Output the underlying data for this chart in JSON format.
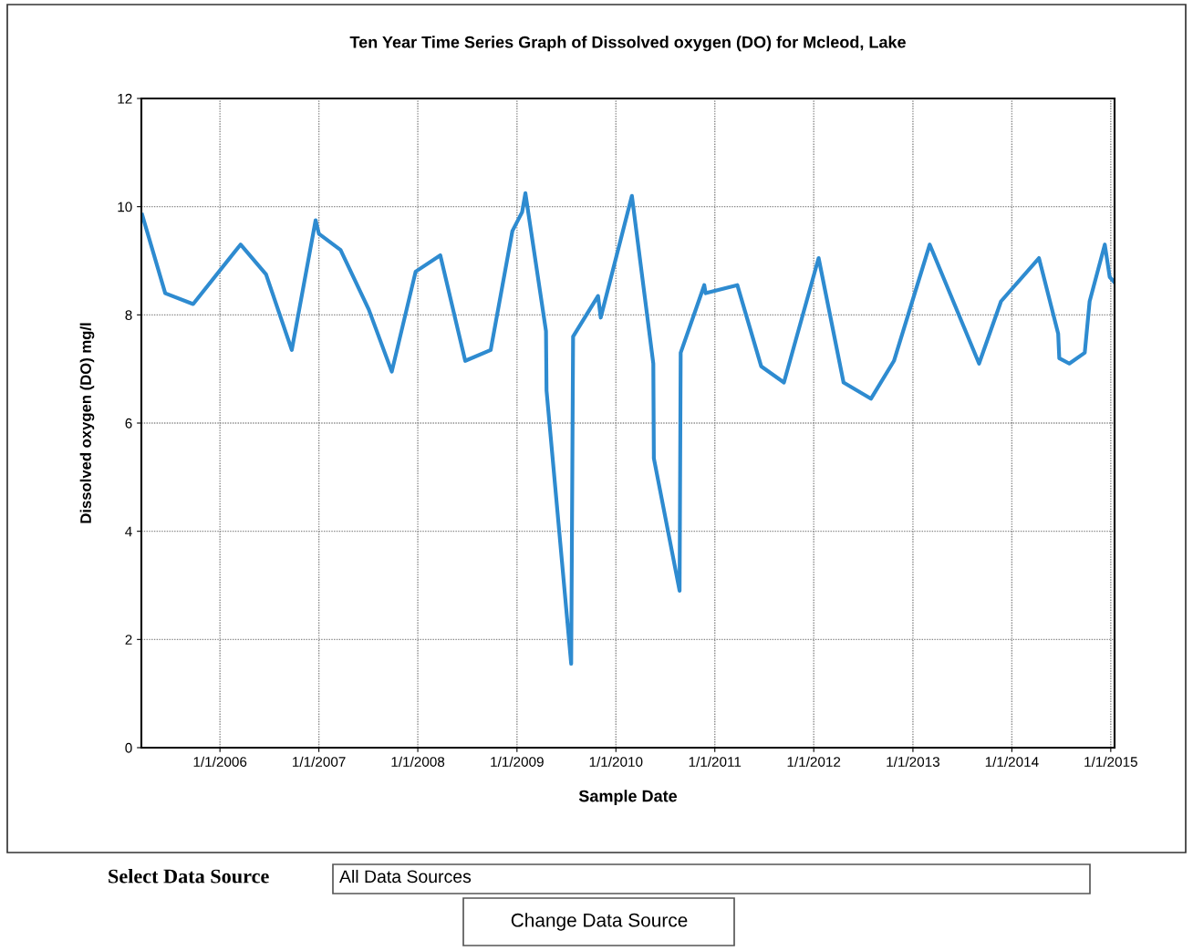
{
  "chart_data": {
    "type": "line",
    "title": "Ten Year Time Series Graph of Dissolved oxygen (DO) for Mcleod, Lake",
    "xlabel": "Sample Date",
    "ylabel": "Dissolved oxygen (DO) mg/l",
    "x": [
      "2005-03-20",
      "2005-06-13",
      "2005-09-24",
      "2006-03-18",
      "2006-06-20",
      "2006-09-23",
      "2006-12-20",
      "2007-01-01",
      "2007-03-22",
      "2007-07-04",
      "2007-09-27",
      "2007-12-24",
      "2008-03-24",
      "2008-06-24",
      "2008-09-26",
      "2008-12-15",
      "2009-01-20",
      "2009-02-01",
      "2009-04-18",
      "2009-04-20",
      "2009-07-20",
      "2009-07-27",
      "2009-10-27",
      "2009-11-06",
      "2010-03-01",
      "2010-05-19",
      "2010-05-21",
      "2010-08-24",
      "2010-08-28",
      "2010-11-23",
      "2010-11-28",
      "2011-03-25",
      "2011-06-21",
      "2011-09-13",
      "2012-01-19",
      "2012-04-20",
      "2012-07-30",
      "2012-10-23",
      "2013-03-04",
      "2013-09-02",
      "2013-11-22",
      "2014-04-11",
      "2014-06-21",
      "2014-06-25",
      "2014-08-01",
      "2014-09-27",
      "2014-10-15",
      "2014-12-10",
      "2014-12-28",
      "2015-01-15"
    ],
    "series": [
      {
        "color": "#2e8bd0",
        "values": [
          9.85,
          8.4,
          8.2,
          9.3,
          8.75,
          7.35,
          9.75,
          9.5,
          9.2,
          8.1,
          6.95,
          8.8,
          9.1,
          7.15,
          7.35,
          9.55,
          9.9,
          10.25,
          7.7,
          6.6,
          1.55,
          7.6,
          8.35,
          7.95,
          10.2,
          7.1,
          5.35,
          2.9,
          7.3,
          8.55,
          8.4,
          8.55,
          7.05,
          6.75,
          9.05,
          6.75,
          6.45,
          7.15,
          9.3,
          7.1,
          8.25,
          9.05,
          7.65,
          7.2,
          7.1,
          7.3,
          8.25,
          9.3,
          8.7,
          8.6
        ]
      }
    ],
    "xlim": [
      "2005-03-17",
      "2015-01-15"
    ],
    "xticks": [
      {
        "value": "2006-01-01",
        "label": "1/1/2006"
      },
      {
        "value": "2007-01-01",
        "label": "1/1/2007"
      },
      {
        "value": "2008-01-01",
        "label": "1/1/2008"
      },
      {
        "value": "2009-01-01",
        "label": "1/1/2009"
      },
      {
        "value": "2010-01-01",
        "label": "1/1/2010"
      },
      {
        "value": "2011-01-01",
        "label": "1/1/2011"
      },
      {
        "value": "2012-01-01",
        "label": "1/1/2012"
      },
      {
        "value": "2013-01-01",
        "label": "1/1/2013"
      },
      {
        "value": "2014-01-01",
        "label": "1/1/2014"
      },
      {
        "value": "2015-01-01",
        "label": "1/1/2015"
      }
    ],
    "ylim": [
      0,
      12
    ],
    "yticks": [
      0,
      2,
      4,
      6,
      8,
      10,
      12
    ],
    "grid": true,
    "marker": "none",
    "line_style": "solid",
    "annotations": [
      "Select Data Source",
      "All Data Sources",
      "Change Data Source"
    ]
  }
}
